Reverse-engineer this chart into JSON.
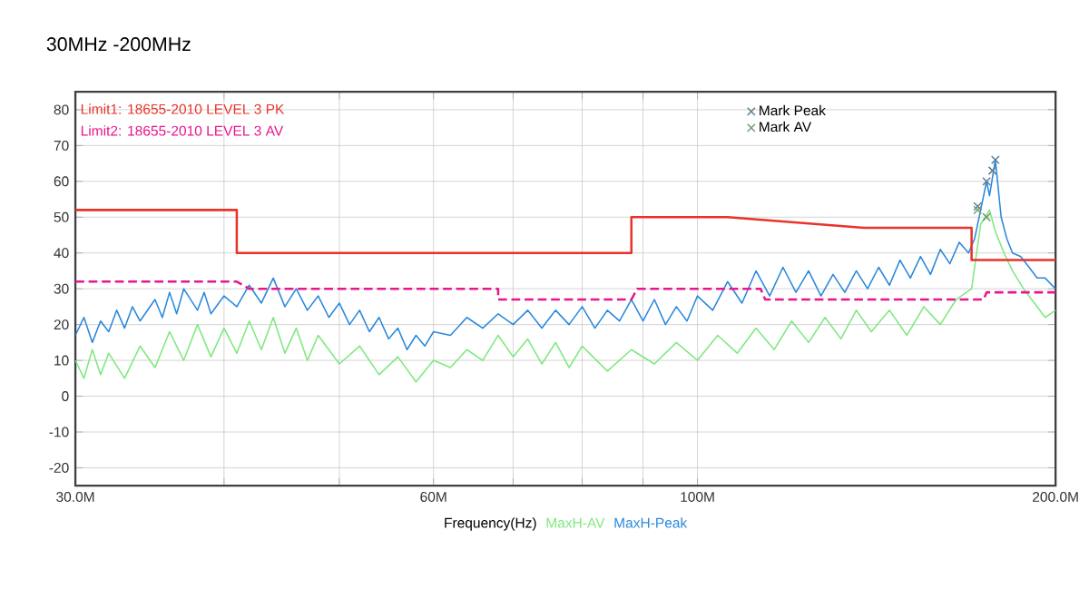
{
  "chart_data": {
    "type": "line",
    "title": "30MHz -200MHz",
    "xlabel": "Frequency(Hz)",
    "log": "x",
    "grid": true,
    "legend": "top right",
    "xlim": [
      30000000.0,
      200000000.0
    ],
    "xticks": [
      {
        "value": 30000000.0,
        "label": "30.0M"
      },
      {
        "value": 40000000.0,
        "label": null
      },
      {
        "value": 50000000.0,
        "label": null
      },
      {
        "value": 60000000.0,
        "label": "60M"
      },
      {
        "value": 70000000.0,
        "label": null
      },
      {
        "value": 80000000.0,
        "label": null
      },
      {
        "value": 90000000.0,
        "label": null
      },
      {
        "value": 100000000.0,
        "label": "100M"
      },
      {
        "value": 200000000.0,
        "label": "200.0M"
      }
    ],
    "ylim": [
      -25,
      85
    ],
    "yticks": [
      -20,
      -10,
      0,
      10,
      20,
      30,
      40,
      50,
      60,
      70,
      80
    ],
    "series": [
      {
        "name": "MaxH-AV",
        "color": "#7fe87f",
        "x": [
          30000000.0,
          30500000.0,
          31000000.0,
          31500000.0,
          32000000.0,
          33000000.0,
          34000000.0,
          35000000.0,
          36000000.0,
          37000000.0,
          38000000.0,
          39000000.0,
          40000000.0,
          41000000.0,
          42000000.0,
          43000000.0,
          44000000.0,
          45000000.0,
          46000000.0,
          47000000.0,
          48000000.0,
          50000000.0,
          52000000.0,
          54000000.0,
          56000000.0,
          58000000.0,
          60000000.0,
          62000000.0,
          64000000.0,
          66000000.0,
          68000000.0,
          70000000.0,
          72000000.0,
          74000000.0,
          76000000.0,
          78000000.0,
          80000000.0,
          84000000.0,
          88000000.0,
          92000000.0,
          96000000.0,
          100000000.0,
          104000000.0,
          108000000.0,
          112000000.0,
          116000000.0,
          120000000.0,
          124000000.0,
          128000000.0,
          132000000.0,
          136000000.0,
          140000000.0,
          145000000.0,
          150000000.0,
          155000000.0,
          160000000.0,
          165000000.0,
          170000000.0,
          173000000.0,
          176000000.0,
          178000000.0,
          181000000.0,
          184000000.0,
          188000000.0,
          192000000.0,
          196000000.0,
          200000000.0
        ],
        "values": [
          10,
          5,
          13,
          6,
          12,
          5,
          14,
          8,
          18,
          10,
          20,
          11,
          19,
          12,
          21,
          13,
          22,
          12,
          19,
          10,
          17,
          9,
          14,
          6,
          11,
          4,
          10,
          8,
          13,
          10,
          17,
          11,
          16,
          9,
          15,
          8,
          14,
          7,
          13,
          9,
          15,
          10,
          17,
          12,
          19,
          13,
          21,
          15,
          22,
          16,
          24,
          18,
          24,
          17,
          25,
          20,
          27,
          30,
          48,
          52,
          46,
          40,
          35,
          30,
          26,
          22,
          24
        ]
      },
      {
        "name": "MaxH-Peak",
        "color": "#2a88dc",
        "x": [
          30000000.0,
          30500000.0,
          31000000.0,
          31500000.0,
          32000000.0,
          32500000.0,
          33000000.0,
          33500000.0,
          34000000.0,
          35000000.0,
          35500000.0,
          36000000.0,
          36500000.0,
          37000000.0,
          38000000.0,
          38500000.0,
          39000000.0,
          40000000.0,
          41000000.0,
          42000000.0,
          43000000.0,
          44000000.0,
          45000000.0,
          46000000.0,
          47000000.0,
          48000000.0,
          49000000.0,
          50000000.0,
          51000000.0,
          52000000.0,
          53000000.0,
          54000000.0,
          55000000.0,
          56000000.0,
          57000000.0,
          58000000.0,
          59000000.0,
          60000000.0,
          62000000.0,
          64000000.0,
          66000000.0,
          68000000.0,
          70000000.0,
          72000000.0,
          74000000.0,
          76000000.0,
          78000000.0,
          80000000.0,
          82000000.0,
          84000000.0,
          86000000.0,
          88000000.0,
          90000000.0,
          92000000.0,
          94000000.0,
          96000000.0,
          98000000.0,
          100000000.0,
          103000000.0,
          106000000.0,
          109000000.0,
          112000000.0,
          115000000.0,
          118000000.0,
          121000000.0,
          124000000.0,
          127000000.0,
          130000000.0,
          133000000.0,
          136000000.0,
          139000000.0,
          142000000.0,
          145000000.0,
          148000000.0,
          151000000.0,
          154000000.0,
          157000000.0,
          160000000.0,
          163000000.0,
          166000000.0,
          169000000.0,
          171000000.0,
          173000000.0,
          175000000.0,
          176000000.0,
          178000000.0,
          180000000.0,
          182000000.0,
          184000000.0,
          187000000.0,
          190000000.0,
          193000000.0,
          196000000.0,
          200000000.0
        ],
        "values": [
          17,
          22,
          15,
          21,
          18,
          24,
          19,
          25,
          21,
          27,
          22,
          29,
          23,
          30,
          24,
          29,
          23,
          28,
          25,
          31,
          26,
          33,
          25,
          30,
          24,
          28,
          22,
          26,
          20,
          24,
          18,
          22,
          16,
          19,
          13,
          17,
          14,
          18,
          17,
          22,
          19,
          23,
          20,
          24,
          19,
          24,
          20,
          25,
          19,
          24,
          21,
          27,
          21,
          27,
          20,
          25,
          21,
          28,
          24,
          32,
          26,
          35,
          28,
          36,
          29,
          35,
          28,
          34,
          29,
          35,
          30,
          36,
          31,
          38,
          33,
          39,
          34,
          41,
          37,
          43,
          40,
          44,
          52,
          60,
          56,
          66,
          50,
          44,
          40,
          39,
          36,
          33,
          33,
          30
        ]
      },
      {
        "name": "Limit1: 18655-2010 LEVEL 3 PK",
        "color": "#e8332a",
        "line_style": "solid",
        "x": [
          30000000.0,
          41000000.0,
          41000000.0,
          88000000.0,
          88000000.0,
          106000000.0,
          138000000.0,
          170000000.0,
          170000000.0,
          200000000.0
        ],
        "values": [
          52,
          52,
          40,
          40,
          50,
          50,
          47,
          47,
          38,
          38
        ]
      },
      {
        "name": "Limit2: 18655-2010 LEVEL 3 AV",
        "color": "#e8168c",
        "line_style": "dashed",
        "x": [
          30000000.0,
          41000000.0,
          42000000.0,
          68000000.0,
          68000000.0,
          88000000.0,
          89000000.0,
          113000000.0,
          114000000.0,
          174000000.0,
          175000000.0,
          200000000.0
        ],
        "values": [
          32,
          32,
          30,
          30,
          27,
          27,
          30,
          30,
          27,
          27,
          29,
          29
        ]
      },
      {
        "name": "Mark Peak",
        "type": "scatter",
        "marker": "cross",
        "color": "#5f7f8f",
        "x": [
          172000000.0,
          175000000.0,
          177000000.0,
          178000000.0
        ],
        "values": [
          53,
          60,
          63,
          66
        ]
      },
      {
        "name": "Mark AV",
        "type": "scatter",
        "marker": "cross",
        "color": "#6fa06f",
        "x": [
          172000000.0,
          175000000.0
        ],
        "values": [
          52,
          50
        ]
      }
    ]
  }
}
